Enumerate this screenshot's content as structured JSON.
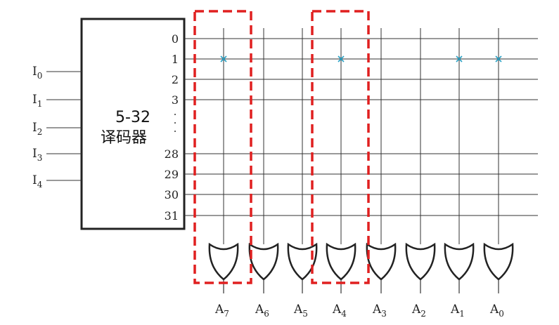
{
  "decoder": {
    "line1": "5-32",
    "line2": "译码器"
  },
  "inputs": [
    {
      "base": "I",
      "sub": "0"
    },
    {
      "base": "I",
      "sub": "1"
    },
    {
      "base": "I",
      "sub": "2"
    },
    {
      "base": "I",
      "sub": "3"
    },
    {
      "base": "I",
      "sub": "4"
    }
  ],
  "row_labels": [
    "0",
    "1",
    "2",
    "3",
    "28",
    "29",
    "30",
    "31"
  ],
  "outputs": [
    {
      "base": "A",
      "sub": "7"
    },
    {
      "base": "A",
      "sub": "6"
    },
    {
      "base": "A",
      "sub": "5"
    },
    {
      "base": "A",
      "sub": "4"
    },
    {
      "base": "A",
      "sub": "3"
    },
    {
      "base": "A",
      "sub": "2"
    },
    {
      "base": "A",
      "sub": "1"
    },
    {
      "base": "A",
      "sub": "0"
    }
  ],
  "connections": [
    {
      "row": "1",
      "column": "A7"
    },
    {
      "row": "1",
      "column": "A4"
    },
    {
      "row": "1",
      "column": "A1"
    },
    {
      "row": "1",
      "column": "A0"
    }
  ],
  "highlighted_columns": [
    "A7",
    "A4"
  ],
  "colors": {
    "line": "#333333",
    "mark": "#2aa1c4",
    "highlight": "#e02020"
  }
}
